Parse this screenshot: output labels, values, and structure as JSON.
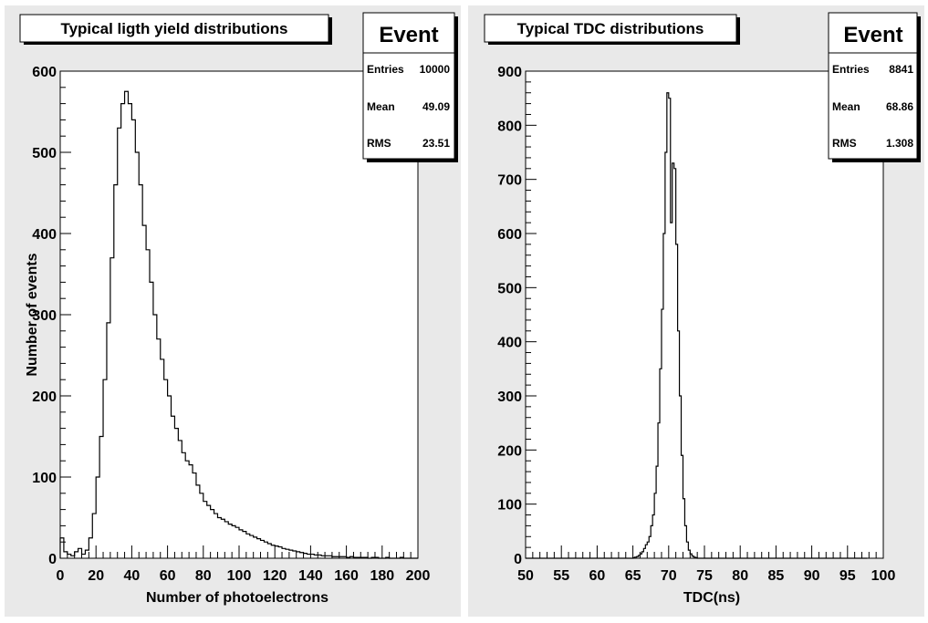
{
  "colors": {
    "background": "#ffffff",
    "pad": "#e9e9e9",
    "frame": "#000000",
    "histogram": "#000000",
    "shadow": "#000000"
  },
  "chart_data": [
    {
      "type": "histogram",
      "title": "Typical  ligth yield distributions",
      "xlabel": "Number of photoelectrons",
      "ylabel": "Number of events",
      "xlim": [
        0,
        200
      ],
      "ylim": [
        0,
        600
      ],
      "xticks": [
        0,
        20,
        40,
        60,
        80,
        100,
        120,
        140,
        160,
        180,
        200
      ],
      "yticks": [
        0,
        100,
        200,
        300,
        400,
        500,
        600
      ],
      "grid": false,
      "stats_box": {
        "name": "Event",
        "rows": [
          {
            "label": "Entries",
            "value": "10000"
          },
          {
            "label": "Mean",
            "value": "49.09"
          },
          {
            "label": "RMS",
            "value": "23.51"
          }
        ]
      },
      "bins": {
        "x_start": 0,
        "width": 2,
        "counts": [
          25,
          8,
          5,
          3,
          8,
          12,
          5,
          10,
          25,
          55,
          100,
          150,
          220,
          290,
          370,
          460,
          530,
          560,
          575,
          560,
          540,
          500,
          460,
          410,
          380,
          340,
          300,
          270,
          245,
          220,
          200,
          175,
          160,
          145,
          130,
          120,
          115,
          105,
          90,
          80,
          70,
          65,
          60,
          55,
          50,
          48,
          45,
          42,
          40,
          38,
          35,
          33,
          30,
          28,
          26,
          24,
          22,
          20,
          18,
          16,
          15,
          14,
          12,
          11,
          10,
          9,
          8,
          7,
          6,
          5,
          5,
          4,
          4,
          3,
          3,
          3,
          2,
          2,
          2,
          2,
          1,
          2,
          1,
          1,
          1,
          1,
          0,
          1,
          1,
          0,
          0,
          1,
          0,
          0,
          0,
          1,
          0,
          0,
          0,
          0
        ]
      }
    },
    {
      "type": "histogram",
      "title": "Typical TDC distributions",
      "xlabel": "TDC(ns)",
      "ylabel": "",
      "xlim": [
        50,
        100
      ],
      "ylim": [
        0,
        900
      ],
      "xticks": [
        50,
        55,
        60,
        65,
        70,
        75,
        80,
        85,
        90,
        95,
        100
      ],
      "yticks": [
        0,
        100,
        200,
        300,
        400,
        500,
        600,
        700,
        800,
        900
      ],
      "grid": false,
      "stats_box": {
        "name": "Event",
        "rows": [
          {
            "label": "Entries",
            "value": "8841"
          },
          {
            "label": "Mean",
            "value": "68.86"
          },
          {
            "label": "RMS",
            "value": "1.308"
          }
        ]
      },
      "bins": {
        "x_start": 50,
        "width": 0.25,
        "counts": [
          0,
          0,
          0,
          0,
          0,
          0,
          0,
          0,
          0,
          0,
          0,
          0,
          0,
          0,
          0,
          0,
          0,
          0,
          0,
          0,
          0,
          0,
          0,
          0,
          0,
          0,
          0,
          0,
          0,
          0,
          0,
          0,
          0,
          0,
          0,
          0,
          0,
          0,
          0,
          0,
          0,
          0,
          0,
          0,
          0,
          0,
          0,
          0,
          0,
          0,
          0,
          0,
          0,
          0,
          0,
          0,
          0,
          0,
          0,
          0,
          1,
          2,
          3,
          5,
          8,
          12,
          18,
          25,
          30,
          40,
          60,
          80,
          120,
          170,
          250,
          350,
          460,
          600,
          750,
          860,
          850,
          620,
          730,
          720,
          580,
          420,
          300,
          190,
          110,
          60,
          30,
          15,
          8,
          4,
          2,
          1,
          0,
          0,
          0,
          0,
          0,
          0,
          0,
          0,
          0,
          0,
          0,
          0,
          0,
          0,
          0,
          0,
          0,
          0,
          0,
          0,
          0,
          0,
          0,
          0,
          0,
          0,
          0,
          0,
          0,
          0,
          0,
          0,
          0,
          0,
          0,
          0,
          0,
          0,
          0,
          0,
          0,
          0,
          0,
          0,
          0,
          0,
          0,
          0,
          0,
          0,
          0,
          0,
          0,
          0,
          0,
          0,
          0,
          0,
          0,
          0,
          0,
          0,
          0,
          0,
          0,
          0,
          0,
          0,
          0,
          0,
          0,
          0,
          0,
          0,
          0,
          0,
          0,
          0,
          0,
          0,
          0,
          0,
          0,
          0,
          0,
          0,
          0,
          0,
          0,
          0,
          0,
          0,
          0,
          0,
          0
        ]
      }
    }
  ]
}
